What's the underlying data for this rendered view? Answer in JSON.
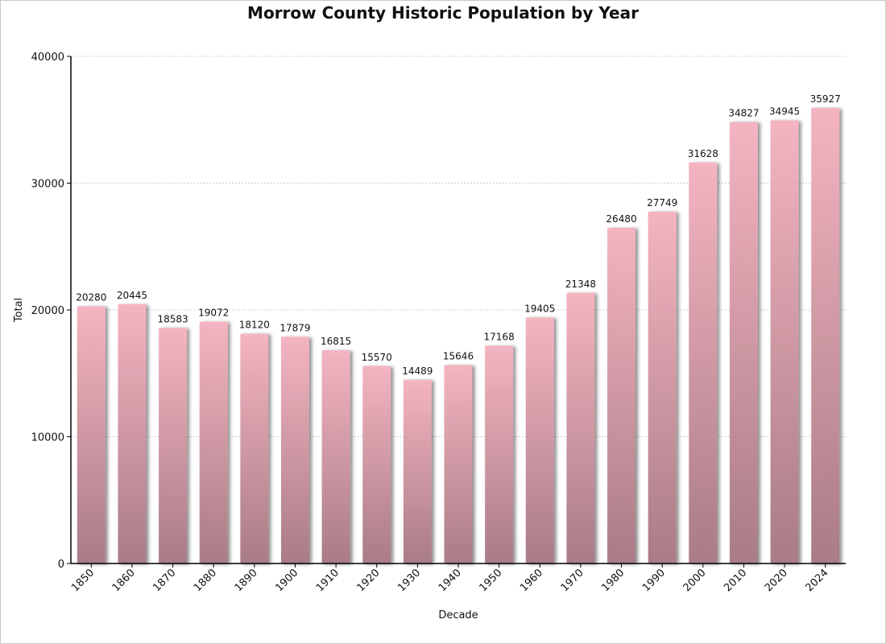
{
  "chart_data": {
    "type": "bar",
    "title": "Morrow County Historic Population by Year",
    "xlabel": "Decade",
    "ylabel": "Total",
    "ylim": [
      0,
      40000
    ],
    "yticks": [
      0,
      10000,
      20000,
      30000,
      40000
    ],
    "grid": true,
    "categories": [
      "1850",
      "1860",
      "1870",
      "1880",
      "1890",
      "1900",
      "1910",
      "1920",
      "1930",
      "1940",
      "1950",
      "1960",
      "1970",
      "1980",
      "1990",
      "2000",
      "2010",
      "2020",
      "2024"
    ],
    "values": [
      20280,
      20445,
      18583,
      19072,
      18120,
      17879,
      16815,
      15570,
      14489,
      15646,
      17168,
      19405,
      21348,
      26480,
      27749,
      31628,
      34827,
      34945,
      35927
    ],
    "colors": {
      "bar_top": "#f4b4c1",
      "bar_bottom": "#a97c86",
      "grid": "#cccccc",
      "axis": "#000000"
    }
  }
}
